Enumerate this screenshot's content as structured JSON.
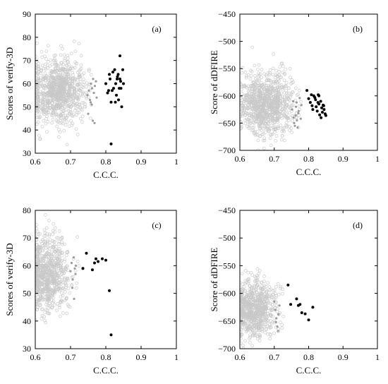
{
  "figure": {
    "panels_note": "4 scatter panels (a)-(d)"
  },
  "colors": {
    "background_points": "#c8c8c8",
    "mid_points": "#9a9a9a",
    "top_points": "#000000"
  },
  "chart_data": [
    {
      "type": "scatter",
      "panel_label": "(a)",
      "xlabel": "C.C.C.",
      "ylabel": "Scores of verify-3D",
      "xlim": [
        0.6,
        1.0
      ],
      "ylim": [
        30,
        90
      ],
      "xticks": [
        "0.6",
        "0.7",
        "0.8",
        "0.9",
        "1"
      ],
      "yticks": [
        "30",
        "40",
        "50",
        "60",
        "70",
        "80",
        "90"
      ],
      "background_cloud": {
        "cx": 0.665,
        "sx": 0.038,
        "cy": 57,
        "sy": 7,
        "n": 900,
        "xmin": 0.6,
        "xmax": 0.76
      },
      "mid_series": {
        "x": [
          0.748,
          0.752,
          0.755,
          0.758,
          0.761,
          0.764,
          0.766,
          0.769,
          0.772,
          0.757,
          0.763,
          0.768,
          0.75,
          0.76,
          0.774
        ],
        "y": [
          55,
          57,
          53,
          60,
          58,
          62,
          56,
          59,
          61,
          52,
          44,
          43,
          47,
          51,
          54
        ]
      },
      "top_series": {
        "x": [
          0.8,
          0.805,
          0.81,
          0.815,
          0.82,
          0.822,
          0.825,
          0.828,
          0.83,
          0.832,
          0.835,
          0.838,
          0.84,
          0.842,
          0.845,
          0.848,
          0.812,
          0.818,
          0.827,
          0.836,
          0.843,
          0.85,
          0.808,
          0.833,
          0.84,
          0.815
        ],
        "y": [
          60,
          56,
          64,
          52,
          65,
          58,
          66,
          60,
          55,
          62,
          64,
          58,
          72,
          61,
          50,
          66,
          62,
          57,
          52,
          53,
          58,
          60,
          57,
          63,
          62,
          34
        ]
      }
    },
    {
      "type": "scatter",
      "panel_label": "(b)",
      "xlabel": "C.C.C.",
      "ylabel": "Score of dDFIRE",
      "xlim": [
        0.6,
        1.0
      ],
      "ylim": [
        -700,
        -450
      ],
      "xticks": [
        "0.6",
        "0.7",
        "0.8",
        "0.9",
        "1"
      ],
      "yticks": [
        "−700",
        "−650",
        "−600",
        "−550",
        "−500",
        "−450"
      ],
      "background_cloud": {
        "cx": 0.675,
        "sx": 0.038,
        "cy": -615,
        "sy": 28,
        "n": 900,
        "xmin": 0.6,
        "xmax": 0.78
      },
      "mid_series": {
        "x": [
          0.752,
          0.756,
          0.76,
          0.763,
          0.766,
          0.77,
          0.758,
          0.762,
          0.768,
          0.755,
          0.765,
          0.771,
          0.774,
          0.777,
          0.779
        ],
        "y": [
          -625,
          -640,
          -655,
          -620,
          -645,
          -632,
          -650,
          -636,
          -658,
          -610,
          -612,
          -628,
          -604,
          -642,
          -617
        ]
      },
      "top_series": {
        "x": [
          0.795,
          0.8,
          0.805,
          0.81,
          0.812,
          0.815,
          0.82,
          0.822,
          0.825,
          0.828,
          0.83,
          0.832,
          0.835,
          0.838,
          0.84,
          0.842,
          0.845,
          0.848,
          0.85,
          0.818,
          0.827,
          0.836,
          0.844,
          0.808,
          0.83
        ],
        "y": [
          -590,
          -605,
          -612,
          -618,
          -625,
          -600,
          -607,
          -620,
          -628,
          -598,
          -615,
          -635,
          -610,
          -622,
          -630,
          -617,
          -625,
          -633,
          -636,
          -603,
          -612,
          -640,
          -618,
          -598,
          -600
        ]
      }
    },
    {
      "type": "scatter",
      "panel_label": "(c)",
      "xlabel": "C.C.C.",
      "ylabel": "Scores of verify-3D",
      "xlim": [
        0.6,
        1.0
      ],
      "ylim": [
        30,
        80
      ],
      "xticks": [
        "0.6",
        "0.7",
        "0.8",
        "0.9",
        "1"
      ],
      "yticks": [
        "30",
        "40",
        "50",
        "60",
        "70",
        "80"
      ],
      "background_cloud": {
        "cx": 0.635,
        "sx": 0.03,
        "cy": 57,
        "sy": 6.5,
        "n": 750,
        "xmin": 0.6,
        "xmax": 0.73
      },
      "mid_series": {
        "x": [
          0.7,
          0.703,
          0.706,
          0.709,
          0.712,
          0.715,
          0.705,
          0.71,
          0.714
        ],
        "y": [
          58,
          61,
          55,
          63,
          59,
          60,
          52,
          48,
          57
        ]
      },
      "top_series": {
        "x": [
          0.735,
          0.745,
          0.762,
          0.768,
          0.772,
          0.778,
          0.79,
          0.8,
          0.81,
          0.815
        ],
        "y": [
          59,
          64.5,
          58.5,
          61,
          62.5,
          61.5,
          62.5,
          62,
          51,
          35
        ]
      }
    },
    {
      "type": "scatter",
      "panel_label": "(d)",
      "xlabel": "C.C.C.",
      "ylabel": "Score of dDFIRE",
      "xlim": [
        0.6,
        1.0
      ],
      "ylim": [
        -700,
        -450
      ],
      "xticks": [
        "0.6",
        "0.7",
        "0.8",
        "0.9",
        "1"
      ],
      "yticks": [
        "−700",
        "−650",
        "−600",
        "−550",
        "−500",
        "−450"
      ],
      "background_cloud": {
        "cx": 0.64,
        "sx": 0.032,
        "cy": -628,
        "sy": 26,
        "n": 750,
        "xmin": 0.6,
        "xmax": 0.73
      },
      "mid_series": {
        "x": [
          0.7,
          0.703,
          0.706,
          0.709,
          0.712,
          0.715,
          0.705,
          0.711
        ],
        "y": [
          -615,
          -630,
          -645,
          -660,
          -638,
          -622,
          -652,
          -668
        ]
      },
      "top_series": {
        "x": [
          0.74,
          0.748,
          0.765,
          0.77,
          0.775,
          0.78,
          0.79,
          0.8,
          0.812
        ],
        "y": [
          -585,
          -620,
          -610,
          -622,
          -620,
          -635,
          -637,
          -648,
          -625
        ]
      }
    }
  ]
}
